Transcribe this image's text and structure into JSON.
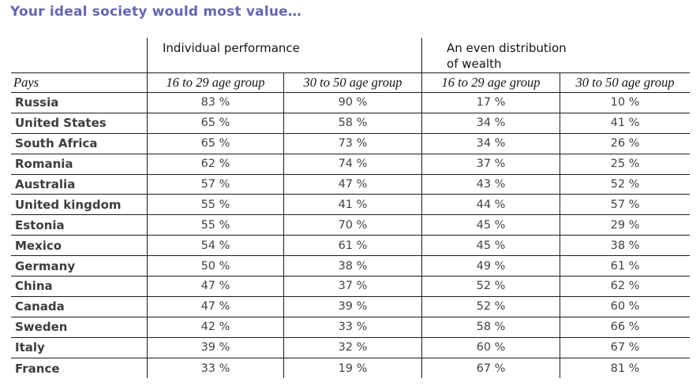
{
  "page": {
    "title": "Your ideal society would most value…"
  },
  "colors": {
    "title": "#6467B1",
    "border": "#1c1c1c",
    "header_text": "#151515",
    "country_text": "#3d3d3d",
    "value_text": "#424242"
  },
  "chart_data": {
    "type": "table",
    "title": "Your ideal society would most value…",
    "unit": "%",
    "value_suffix": " %",
    "column_groups": [
      {
        "label": "Individual performance",
        "span": 2
      },
      {
        "label": "An even distribution\nof wealth",
        "span": 2
      }
    ],
    "columns": [
      "Pays",
      "16 to 29 age group",
      "30 to 50 age group",
      "16 to 29 age group",
      "30 to 50 age group"
    ],
    "rows": [
      {
        "country": "Russia",
        "values": [
          83,
          90,
          17,
          10
        ]
      },
      {
        "country": "United States",
        "values": [
          65,
          58,
          34,
          41
        ]
      },
      {
        "country": "South Africa",
        "values": [
          65,
          73,
          34,
          26
        ]
      },
      {
        "country": "Romania",
        "values": [
          62,
          74,
          37,
          25
        ]
      },
      {
        "country": "Australia",
        "values": [
          57,
          47,
          43,
          52
        ]
      },
      {
        "country": "United kingdom",
        "values": [
          55,
          41,
          44,
          57
        ]
      },
      {
        "country": "Estonia",
        "values": [
          55,
          70,
          45,
          29
        ]
      },
      {
        "country": "Mexico",
        "values": [
          54,
          61,
          45,
          38
        ]
      },
      {
        "country": "Germany",
        "values": [
          50,
          38,
          49,
          61
        ]
      },
      {
        "country": "China",
        "values": [
          47,
          37,
          52,
          62
        ]
      },
      {
        "country": "Canada",
        "values": [
          47,
          39,
          52,
          60
        ]
      },
      {
        "country": "Sweden",
        "values": [
          42,
          33,
          58,
          66
        ]
      },
      {
        "country": "Italy",
        "values": [
          39,
          32,
          60,
          67
        ]
      },
      {
        "country": "France",
        "values": [
          33,
          19,
          67,
          81
        ]
      }
    ]
  }
}
